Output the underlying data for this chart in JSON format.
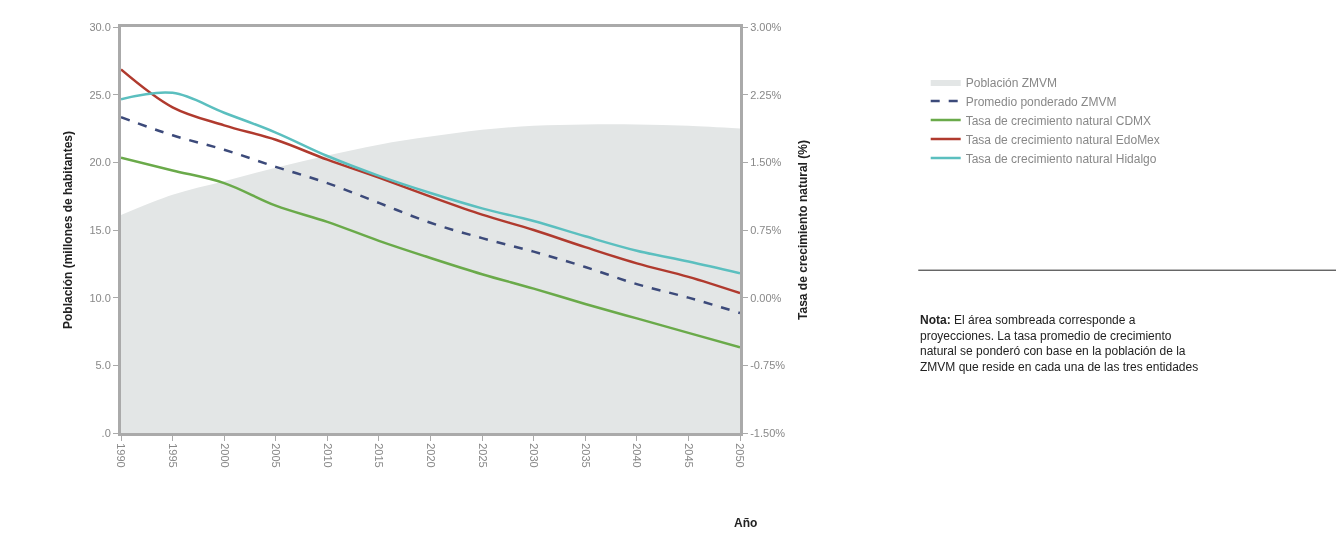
{
  "chart_data": {
    "type": "line",
    "xlabel": "Año",
    "ylabel": "Población (millones de habitantes)",
    "y2label": "Tasa de crecimiento natural (%)",
    "x": [
      1990,
      1995,
      2000,
      2005,
      2010,
      2015,
      2020,
      2025,
      2030,
      2035,
      2040,
      2045,
      2050
    ],
    "xlim": [
      1990,
      2050
    ],
    "xticks": [
      {
        "value": 1990,
        "label": "1990"
      },
      {
        "value": 1995,
        "label": "1995"
      },
      {
        "value": 2000,
        "label": "2000"
      },
      {
        "value": 2005,
        "label": "2005"
      },
      {
        "value": 2010,
        "label": "2010"
      },
      {
        "value": 2015,
        "label": "2015"
      },
      {
        "value": 2020,
        "label": "2020"
      },
      {
        "value": 2025,
        "label": "2025"
      },
      {
        "value": 2030,
        "label": "2030"
      },
      {
        "value": 2035,
        "label": "2035"
      },
      {
        "value": 2040,
        "label": "2040"
      },
      {
        "value": 2045,
        "label": "2045"
      },
      {
        "value": 2050,
        "label": "2050"
      }
    ],
    "ylim": [
      0,
      30
    ],
    "yticks": [
      {
        "value": 0,
        "label": ".0"
      },
      {
        "value": 5,
        "label": "5.0"
      },
      {
        "value": 10,
        "label": "10.0"
      },
      {
        "value": 15,
        "label": "15.0"
      },
      {
        "value": 20,
        "label": "20.0"
      },
      {
        "value": 25,
        "label": "25.0"
      },
      {
        "value": 30,
        "label": "30.0"
      }
    ],
    "y2lim": [
      -1.5,
      3
    ],
    "y2ticks": [
      {
        "value": -1.5,
        "label": "-1.50%"
      },
      {
        "value": -0.75,
        "label": "-0.75%"
      },
      {
        "value": 0,
        "label": "0.00%"
      },
      {
        "value": 0.75,
        "label": "0.75%"
      },
      {
        "value": 1.5,
        "label": "1.50%"
      },
      {
        "value": 2.25,
        "label": "2.25%"
      },
      {
        "value": 3,
        "label": "3.00%"
      }
    ],
    "series": [
      {
        "name": "Población ZMVM",
        "type": "area",
        "color": "#e3e6e6",
        "values": [
          16.1,
          17.6,
          18.6,
          19.6,
          20.5,
          21.3,
          21.9,
          22.4,
          22.7,
          22.8,
          22.8,
          22.7,
          22.5
        ]
      },
      {
        "name": "Promedio ponderado ZMVM",
        "axis": "y2",
        "line_style": "dashed",
        "color": "#3c4a7a",
        "values": [
          2.0,
          1.8,
          1.64,
          1.45,
          1.27,
          1.05,
          0.83,
          0.66,
          0.51,
          0.34,
          0.15,
          0.0,
          -0.17
        ]
      },
      {
        "name": "Tasa de crecimiento natural CDMX",
        "axis": "y2",
        "color": "#6aaa4a",
        "values": [
          1.55,
          1.41,
          1.27,
          1.02,
          0.84,
          0.63,
          0.44,
          0.26,
          0.1,
          -0.07,
          -0.23,
          -0.39,
          -0.55
        ]
      },
      {
        "name": "Tasa de crecimiento natural EdoMex",
        "axis": "y2",
        "color": "#b03a2e",
        "values": [
          2.53,
          2.11,
          1.91,
          1.75,
          1.53,
          1.33,
          1.12,
          0.92,
          0.75,
          0.56,
          0.38,
          0.23,
          0.05
        ]
      },
      {
        "name": "Tasa de crecimiento natural Hidalgo",
        "axis": "y2",
        "color": "#5bbfbf",
        "values": [
          2.2,
          2.27,
          2.05,
          1.83,
          1.57,
          1.35,
          1.16,
          0.99,
          0.85,
          0.68,
          0.52,
          0.4,
          0.27
        ]
      }
    ],
    "legend": "right",
    "annotations": [
      "Nota: El área sombreada corresponde a proyecciones. La tasa promedio de crecimiento natural se ponderó con base en la población de la ZMVM que reside en cada una de las tres entidades"
    ]
  }
}
